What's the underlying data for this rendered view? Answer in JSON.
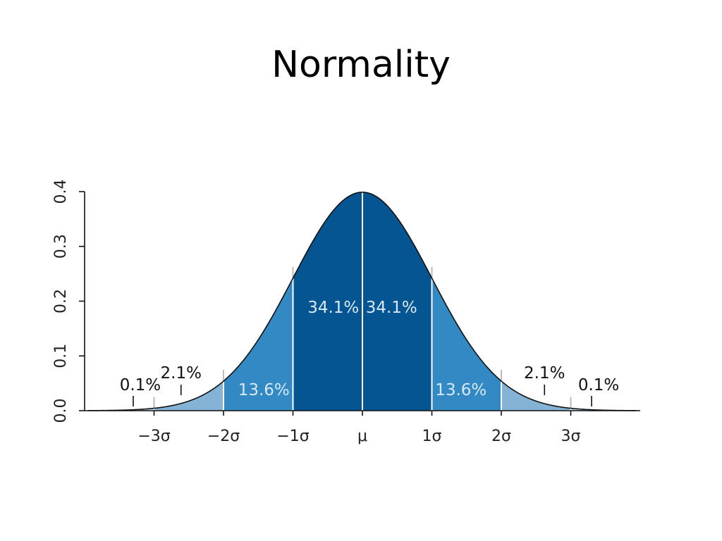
{
  "slide": {
    "title": "Normality"
  },
  "chart_data": {
    "type": "area",
    "title": "",
    "xlabel": "",
    "ylabel": "",
    "distribution": "normal",
    "mean": 0,
    "sd": 1,
    "xlim": [
      -3.95,
      3.95
    ],
    "ylim": [
      0,
      0.4
    ],
    "yticks": [
      0.0,
      0.1,
      0.2,
      0.3,
      0.4
    ],
    "ytick_labels": [
      "0.0",
      "0.1",
      "0.2",
      "0.3",
      "0.4"
    ],
    "xticks": [
      -3,
      -2,
      -1,
      0,
      1,
      2,
      3
    ],
    "xtick_labels": [
      "−3σ",
      "−2σ",
      "−1σ",
      "μ",
      "1σ",
      "2σ",
      "3σ"
    ],
    "regions": [
      {
        "from": -3,
        "to": -2,
        "label": "2.1%",
        "color": "#84b3d6"
      },
      {
        "from": -2,
        "to": -1,
        "label": "13.6%",
        "color": "#3289c3"
      },
      {
        "from": -1,
        "to": 0,
        "label": "34.1%",
        "color": "#045592"
      },
      {
        "from": 0,
        "to": 1,
        "label": "34.1%",
        "color": "#045592"
      },
      {
        "from": 1,
        "to": 2,
        "label": "13.6%",
        "color": "#3289c3"
      },
      {
        "from": 2,
        "to": 3,
        "label": "2.1%",
        "color": "#84b3d6"
      }
    ],
    "tail_labels": [
      {
        "x": -3.3,
        "label": "0.1%"
      },
      {
        "x": 3.3,
        "label": "0.1%"
      }
    ],
    "colors": {
      "outer": "#84b3d6",
      "middle": "#3289c3",
      "inner": "#045592",
      "tail": "#b8d3e8",
      "curve": "#111111",
      "inner_text": "#d8e8f4",
      "outer_text": "#111111"
    }
  }
}
